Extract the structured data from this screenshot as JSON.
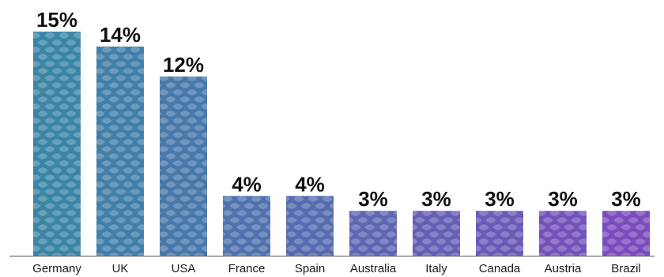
{
  "chart_data": {
    "type": "bar",
    "categories": [
      "Germany",
      "UK",
      "USA",
      "France",
      "Spain",
      "Australia",
      "Italy",
      "Canada",
      "Austria",
      "Brazil"
    ],
    "values": [
      15,
      14,
      12,
      4,
      4,
      3,
      3,
      3,
      3,
      3
    ],
    "value_labels": [
      "15%",
      "14%",
      "12%",
      "4%",
      "4%",
      "3%",
      "3%",
      "3%",
      "3%",
      "3%"
    ],
    "title": "",
    "xlabel": "",
    "ylabel": "",
    "ylim": [
      0,
      15.8
    ],
    "grid": false,
    "legend": "none",
    "bar_pattern": "leaf-texture",
    "colors": {
      "gradient_start": "#3a86a8",
      "gradient_end": "#7a4cbf",
      "baseline": "#555555",
      "label_text": "#111111"
    }
  }
}
